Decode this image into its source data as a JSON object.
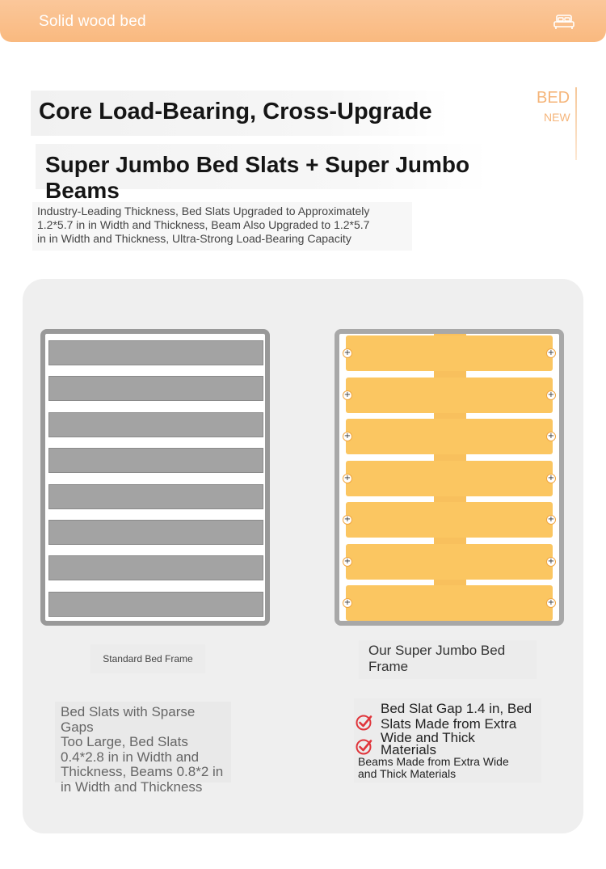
{
  "header": {
    "title": "Solid wood bed",
    "icon": "bed-icon",
    "gradient_colors": [
      "#fbc79a",
      "#f9b97f"
    ]
  },
  "badge": {
    "big": "BED",
    "small": "NEW",
    "color": "#f5b57a"
  },
  "headline": {
    "line1": "Core Load-Bearing, Cross-Upgrade",
    "line2": "Super Jumbo Bed Slats + Super Jumbo Beams"
  },
  "description": {
    "line1": "Industry-Leading Thickness, Bed Slats Upgraded to Approximately",
    "line2": "1.2*5.7 in in Width and Thickness, Beam Also Upgraded to 1.2*5.7",
    "line3": "in in Width and Thickness, Ultra-Strong Load-Bearing Capacity"
  },
  "comparison": {
    "standard": {
      "caption": "Standard Bed Frame",
      "slat_count": 8,
      "slat_color": "#a3a3a3",
      "text_lines": [
        "Bed Slats with Sparse Gaps",
        "Too Large, Bed Slats",
        "0.4*2.8 in in Width and",
        "Thickness, Beams 0.8*2 in",
        "in Width and Thickness"
      ]
    },
    "super_jumbo": {
      "caption_lines": [
        "Our Super Jumbo Bed",
        "Frame"
      ],
      "slat_count": 7,
      "slat_color": "#fbc661",
      "check_icon": "check-circle-icon",
      "check_color": "#e0353b",
      "text_line1a": "Bed Slat Gap 1.4 in, Bed",
      "text_line1b": "Slats Made from Extra",
      "text_line2a": "Wide and Thick",
      "text_line2b": "Materials",
      "text_line3a": "Beams Made from Extra Wide",
      "text_line3b": "and Thick Materials"
    }
  }
}
